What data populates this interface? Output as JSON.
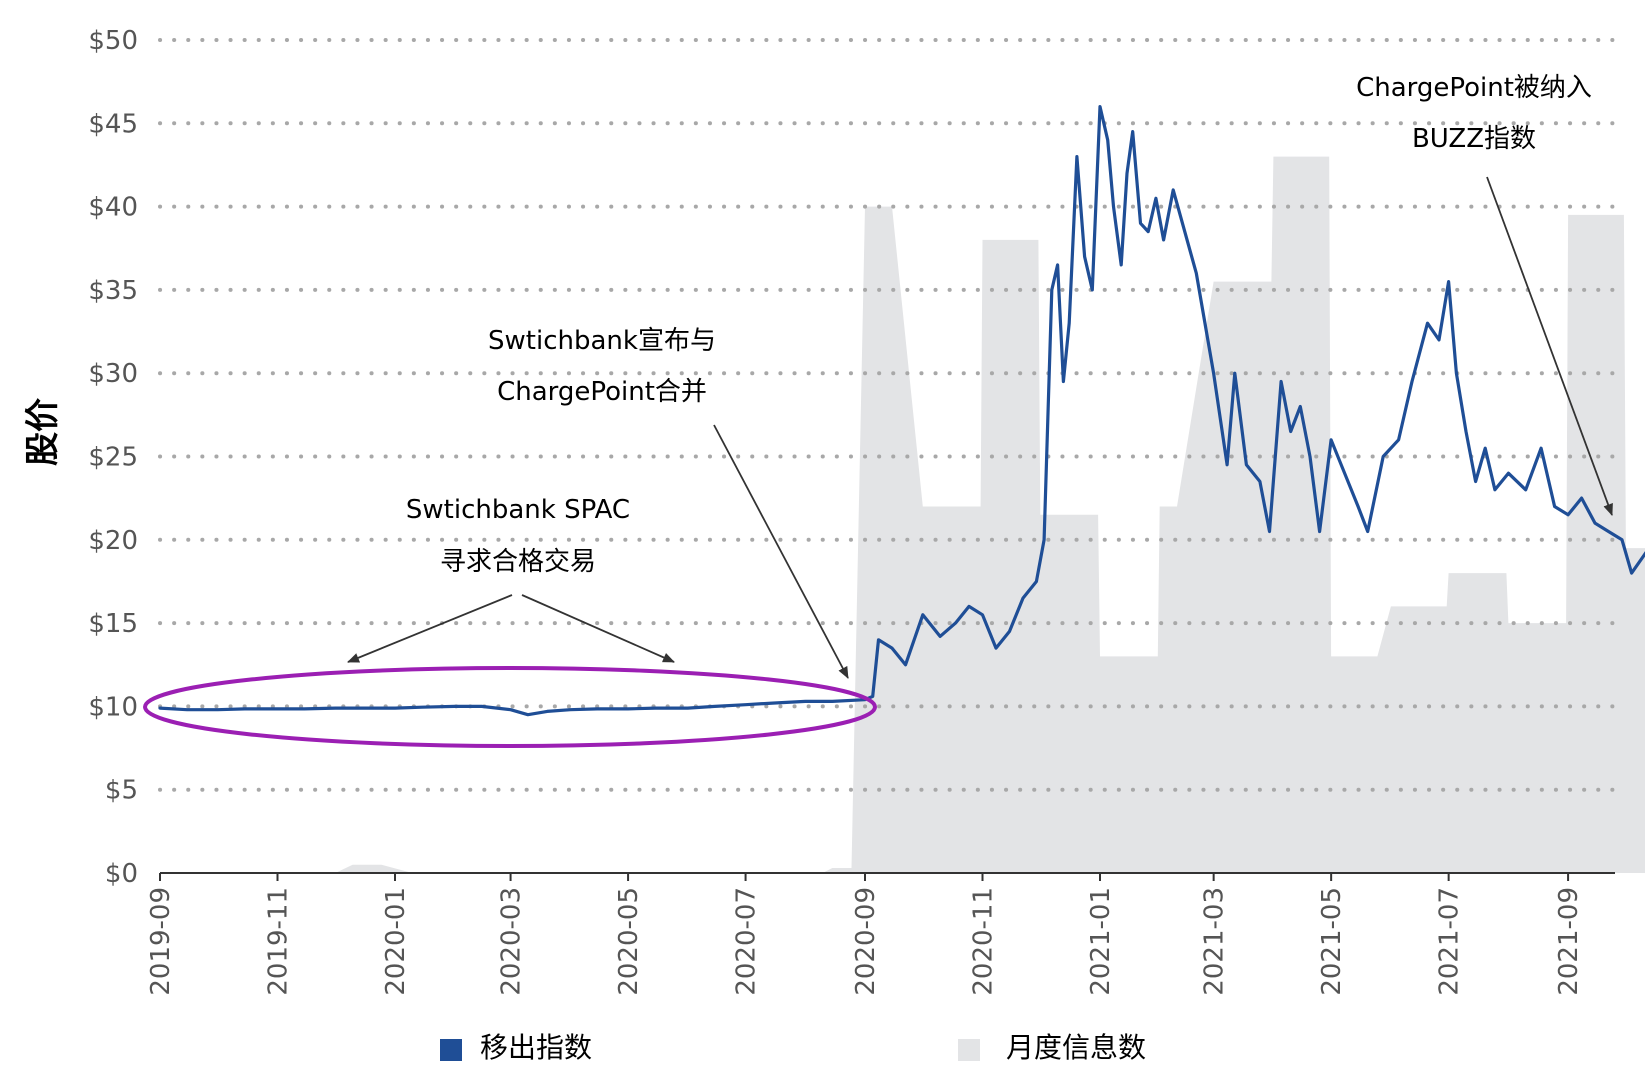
{
  "chart_data": {
    "type": "line",
    "title": "",
    "ylabel": "股价",
    "xlabel": "",
    "ylim": [
      0,
      50
    ],
    "y_ticks": [
      "$0",
      "$5",
      "$10",
      "$15",
      "$20",
      "$25",
      "$30",
      "$35",
      "$40",
      "$45",
      "$50"
    ],
    "x_ticks": [
      "2019-09",
      "2019-11",
      "2020-01",
      "2020-03",
      "2020-05",
      "2020-07",
      "2020-09",
      "2020-11",
      "2021-01",
      "2021-03",
      "2021-05",
      "2021-07",
      "2021-09"
    ],
    "grid": "horizontal dotted",
    "colors": {
      "line": "#1f4e96",
      "area": "#e3e4e6",
      "ellipse": "#9b1fb3",
      "arrow": "#333333"
    },
    "series": [
      {
        "name": "移出指数",
        "kind": "line",
        "points": [
          [
            "2019-09-01",
            9.9
          ],
          [
            "2019-09-15",
            9.8
          ],
          [
            "2019-10-01",
            9.8
          ],
          [
            "2019-10-15",
            9.85
          ],
          [
            "2019-11-01",
            9.85
          ],
          [
            "2019-11-15",
            9.85
          ],
          [
            "2019-12-01",
            9.9
          ],
          [
            "2019-12-15",
            9.9
          ],
          [
            "2020-01-01",
            9.9
          ],
          [
            "2020-01-15",
            9.95
          ],
          [
            "2020-02-01",
            10.0
          ],
          [
            "2020-02-15",
            10.0
          ],
          [
            "2020-03-01",
            9.8
          ],
          [
            "2020-03-10",
            9.5
          ],
          [
            "2020-03-20",
            9.7
          ],
          [
            "2020-04-01",
            9.8
          ],
          [
            "2020-04-15",
            9.85
          ],
          [
            "2020-05-01",
            9.85
          ],
          [
            "2020-05-15",
            9.9
          ],
          [
            "2020-06-01",
            9.9
          ],
          [
            "2020-06-15",
            10.0
          ],
          [
            "2020-07-01",
            10.1
          ],
          [
            "2020-07-15",
            10.2
          ],
          [
            "2020-08-01",
            10.3
          ],
          [
            "2020-08-15",
            10.3
          ],
          [
            "2020-09-01",
            10.4
          ],
          [
            "2020-09-05",
            10.6
          ],
          [
            "2020-09-08",
            14.0
          ],
          [
            "2020-09-15",
            13.5
          ],
          [
            "2020-09-22",
            12.5
          ],
          [
            "2020-10-01",
            15.5
          ],
          [
            "2020-10-10",
            14.2
          ],
          [
            "2020-10-18",
            15.0
          ],
          [
            "2020-10-25",
            16.0
          ],
          [
            "2020-11-01",
            15.5
          ],
          [
            "2020-11-08",
            13.5
          ],
          [
            "2020-11-15",
            14.5
          ],
          [
            "2020-11-22",
            16.5
          ],
          [
            "2020-11-29",
            17.5
          ],
          [
            "2020-12-03",
            20.0
          ],
          [
            "2020-12-07",
            35.0
          ],
          [
            "2020-12-10",
            36.5
          ],
          [
            "2020-12-13",
            29.5
          ],
          [
            "2020-12-16",
            33.0
          ],
          [
            "2020-12-20",
            43.0
          ],
          [
            "2020-12-24",
            37.0
          ],
          [
            "2020-12-28",
            35.0
          ],
          [
            "2021-01-01",
            46.0
          ],
          [
            "2021-01-05",
            44.0
          ],
          [
            "2021-01-08",
            40.0
          ],
          [
            "2021-01-12",
            36.5
          ],
          [
            "2021-01-15",
            42.0
          ],
          [
            "2021-01-18",
            44.5
          ],
          [
            "2021-01-22",
            39.0
          ],
          [
            "2021-01-26",
            38.5
          ],
          [
            "2021-01-30",
            40.5
          ],
          [
            "2021-02-03",
            38.0
          ],
          [
            "2021-02-08",
            41.0
          ],
          [
            "2021-02-20",
            36.0
          ],
          [
            "2021-03-01",
            30.0
          ],
          [
            "2021-03-08",
            24.5
          ],
          [
            "2021-03-12",
            30.0
          ],
          [
            "2021-03-18",
            24.5
          ],
          [
            "2021-03-25",
            23.5
          ],
          [
            "2021-03-30",
            20.5
          ],
          [
            "2021-04-05",
            29.5
          ],
          [
            "2021-04-10",
            26.5
          ],
          [
            "2021-04-15",
            28.0
          ],
          [
            "2021-04-20",
            25.0
          ],
          [
            "2021-04-25",
            20.5
          ],
          [
            "2021-05-01",
            26.0
          ],
          [
            "2021-05-08",
            24.0
          ],
          [
            "2021-05-15",
            22.0
          ],
          [
            "2021-05-20",
            20.5
          ],
          [
            "2021-05-28",
            25.0
          ],
          [
            "2021-06-05",
            26.0
          ],
          [
            "2021-06-12",
            29.5
          ],
          [
            "2021-06-20",
            33.0
          ],
          [
            "2021-06-26",
            32.0
          ],
          [
            "2021-07-01",
            35.5
          ],
          [
            "2021-07-05",
            30.0
          ],
          [
            "2021-07-10",
            26.5
          ],
          [
            "2021-07-15",
            23.5
          ],
          [
            "2021-07-20",
            25.5
          ],
          [
            "2021-07-25",
            23.0
          ],
          [
            "2021-08-01",
            24.0
          ],
          [
            "2021-08-10",
            23.0
          ],
          [
            "2021-08-18",
            25.5
          ],
          [
            "2021-08-25",
            22.0
          ],
          [
            "2021-09-01",
            21.5
          ],
          [
            "2021-09-08",
            22.5
          ],
          [
            "2021-09-15",
            21.0
          ],
          [
            "2021-09-22",
            20.5
          ],
          [
            "2021-09-29",
            20.0
          ],
          [
            "2021-10-04",
            18.0
          ],
          [
            "2021-10-10",
            19.0
          ],
          [
            "2021-10-16",
            20.0
          ]
        ]
      },
      {
        "name": "月度信息数",
        "kind": "area",
        "points": [
          [
            "2019-09-01",
            0
          ],
          [
            "2019-12-01",
            0
          ],
          [
            "2019-12-10",
            0.5
          ],
          [
            "2019-12-25",
            0.5
          ],
          [
            "2020-01-10",
            0
          ],
          [
            "2020-08-10",
            0
          ],
          [
            "2020-08-15",
            0.3
          ],
          [
            "2020-08-25",
            0.3
          ],
          [
            "2020-09-01",
            40
          ],
          [
            "2020-09-15",
            40
          ],
          [
            "2020-10-01",
            22
          ],
          [
            "2020-10-31",
            22
          ],
          [
            "2020-11-01",
            38
          ],
          [
            "2020-11-30",
            38
          ],
          [
            "2020-12-01",
            21.5
          ],
          [
            "2020-12-31",
            21.5
          ],
          [
            "2021-01-01",
            13
          ],
          [
            "2021-01-31",
            13
          ],
          [
            "2021-02-01",
            22
          ],
          [
            "2021-02-10",
            22
          ],
          [
            "2021-03-01",
            35.5
          ],
          [
            "2021-03-31",
            35.5
          ],
          [
            "2021-04-01",
            43
          ],
          [
            "2021-04-30",
            43
          ],
          [
            "2021-05-01",
            13
          ],
          [
            "2021-05-25",
            13
          ],
          [
            "2021-06-01",
            16
          ],
          [
            "2021-06-30",
            16
          ],
          [
            "2021-07-01",
            18
          ],
          [
            "2021-07-31",
            18
          ],
          [
            "2021-08-01",
            15
          ],
          [
            "2021-08-31",
            15
          ],
          [
            "2021-09-01",
            39.5
          ],
          [
            "2021-09-30",
            39.5
          ],
          [
            "2021-10-01",
            19.5
          ],
          [
            "2021-10-16",
            19.5
          ]
        ]
      }
    ],
    "legend": [
      {
        "label": "移出指数",
        "color": "#1f4e96"
      },
      {
        "label": "月度信息数",
        "color": "#e3e4e6"
      }
    ],
    "legend_placement": "bottom",
    "annotations": [
      {
        "lines": [
          "Swtichbank SPAC",
          "寻求合格交易"
        ]
      },
      {
        "lines": [
          "Swtichbank宣布与",
          "ChargePoint合并"
        ]
      },
      {
        "lines": [
          "ChargePoint被纳入",
          "BUZZ指数"
        ]
      }
    ]
  }
}
